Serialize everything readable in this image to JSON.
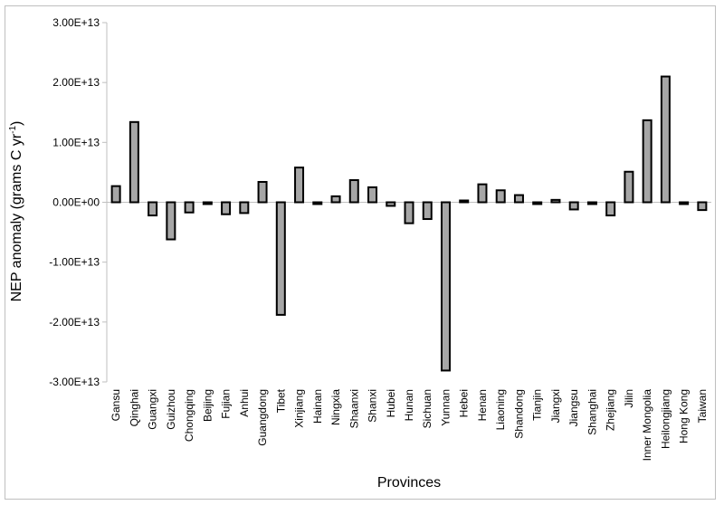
{
  "chart_data": {
    "type": "bar",
    "title": "",
    "xlabel": "Provinces",
    "ylabel": "NEP anomaly (grams C yr",
    "ylabel_superscript": "-1",
    "ylabel_close": ")",
    "ylim": [
      -30000000000000.0,
      30000000000000.0
    ],
    "yticks": [
      30000000000000.0,
      20000000000000.0,
      10000000000000.0,
      0,
      -10000000000000.0,
      -20000000000000.0,
      -30000000000000.0
    ],
    "ytick_labels": [
      "3.00E+13",
      "2.00E+13",
      "1.00E+13",
      "0.00E+00",
      "-1.00E+13",
      "-2.00E+13",
      "-3.00E+13"
    ],
    "grid": false,
    "legend": false,
    "bar_color": "#a6a6a6",
    "bar_edge_color": "#000000",
    "categories": [
      "Gansu",
      "Qinghai",
      "Guangxi",
      "Guizhou",
      "Chongqing",
      "Beijing",
      "Fujian",
      "Anhui",
      "Guangdong",
      "Tibet",
      "Xinjiang",
      "Hainan",
      "Ningxia",
      "Shaanxi",
      "Shanxi",
      "Hubei",
      "Hunan",
      "Sichuan",
      "Yunnan",
      "Hebei",
      "Henan",
      "Liaoning",
      "Shandong",
      "Tianjin",
      "Jiangxi",
      "Jiangsu",
      "Shanghai",
      "Zhejiang",
      "Jilin",
      "Inner Mongolia",
      "Heilongjiang",
      "Hong Kong",
      "Taiwan"
    ],
    "values": [
      2700000000000.0,
      13400000000000.0,
      -2200000000000.0,
      -6200000000000.0,
      -1700000000000.0,
      -300000000000.0,
      -2000000000000.0,
      -1800000000000.0,
      3400000000000.0,
      -18800000000000.0,
      5800000000000.0,
      -300000000000.0,
      1000000000000.0,
      3700000000000.0,
      2500000000000.0,
      -600000000000.0,
      -3500000000000.0,
      -2800000000000.0,
      -28100000000000.0,
      300000000000.0,
      3000000000000.0,
      2000000000000.0,
      1200000000000.0,
      -300000000000.0,
      400000000000.0,
      -1200000000000.0,
      -300000000000.0,
      -2200000000000.0,
      5100000000000.0,
      13700000000000.0,
      21000000000000.0,
      -300000000000.0,
      -1300000000000.0
    ]
  }
}
